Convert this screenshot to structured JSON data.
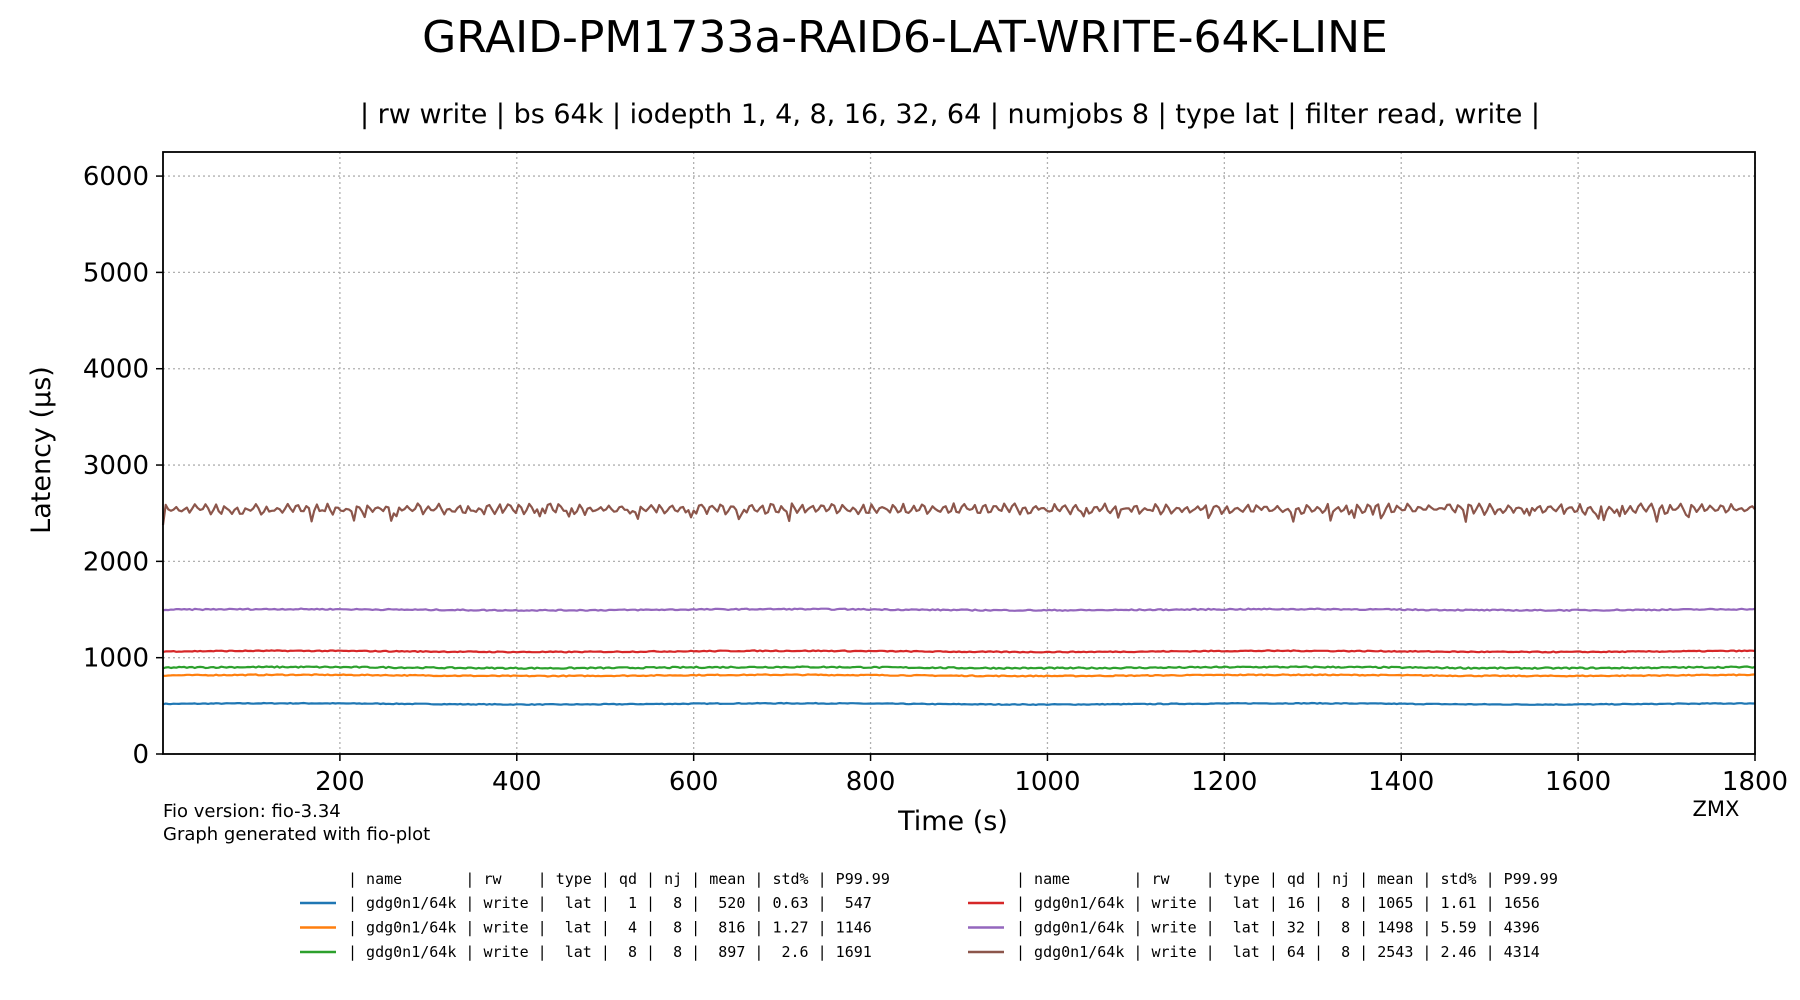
{
  "chart_data": {
    "type": "line",
    "title": "GRAID-PM1733a-RAID6-LAT-WRITE-64K-LINE",
    "subtitle": "| rw write | bs 64k | iodepth 1, 4, 8, 16, 32, 64 | numjobs 8 | type lat | filter read, write |",
    "xlabel": "Time (s)",
    "ylabel": "Latency (µs)",
    "xlim": [
      0,
      1800
    ],
    "ylim": [
      0,
      6250
    ],
    "xticks": [
      200,
      400,
      600,
      800,
      1000,
      1200,
      1400,
      1600,
      1800
    ],
    "yticks": [
      0,
      1000,
      2000,
      3000,
      4000,
      5000,
      6000
    ],
    "grid": true,
    "legend_placement": "bottom",
    "legend_header_left": "| name       | rw    | type | qd | nj | mean | std% | P99.99",
    "legend_header_right": "| name       | rw    | type | qd | nj | mean | std% | P99.99",
    "footer_version": "Fio version: fio-3.34",
    "footer_generated": "Graph generated with fio-plot",
    "corner_label": "ZMX",
    "series": [
      {
        "legend": "| gdg0n1/64k | write |  lat |  1 |  8 |  520 | 0.63 |  547",
        "color": "#1f77b4",
        "mean": 520,
        "amplitude": 8,
        "column": 0
      },
      {
        "legend": "| gdg0n1/64k | write |  lat |  4 |  8 |  816 | 1.27 | 1146",
        "color": "#ff7f0e",
        "mean": 816,
        "amplitude": 10,
        "column": 0
      },
      {
        "legend": "| gdg0n1/64k | write |  lat |  8 |  8 |  897 |  2.6 | 1691",
        "color": "#2ca02c",
        "mean": 897,
        "amplitude": 14,
        "column": 0
      },
      {
        "legend": "| gdg0n1/64k | write |  lat | 16 |  8 | 1065 | 1.61 | 1656",
        "color": "#d62728",
        "mean": 1065,
        "amplitude": 10,
        "column": 1
      },
      {
        "legend": "| gdg0n1/64k | write |  lat | 32 |  8 | 1498 | 5.59 | 4396",
        "color": "#9467bd",
        "mean": 1498,
        "amplitude": 12,
        "column": 1
      },
      {
        "legend": "| gdg0n1/64k | write |  lat | 64 |  8 | 2543 | 2.46 | 4314",
        "color": "#8c564b",
        "mean": 2543,
        "amplitude": 55,
        "column": 1
      }
    ]
  }
}
